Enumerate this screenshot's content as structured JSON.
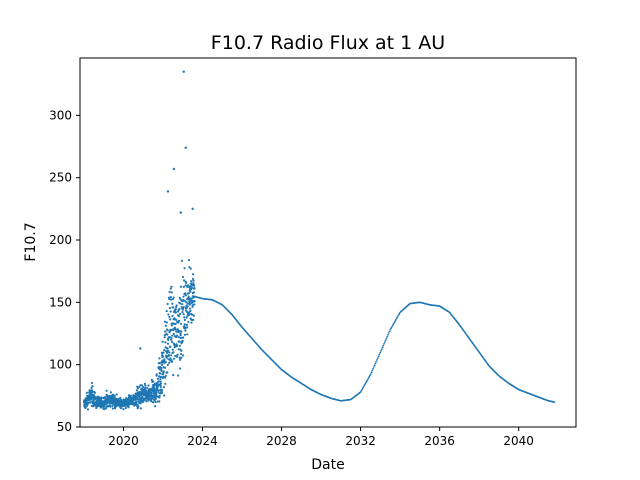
{
  "chart_data": {
    "type": "scatter",
    "title": "F10.7 Radio Flux at 1 AU",
    "xlabel": "Date",
    "ylabel": "F10.7",
    "x_axis": "date",
    "xlim": [
      2017.8,
      2042.9
    ],
    "ylim": [
      50,
      346
    ],
    "xticks": [
      2020,
      2024,
      2028,
      2032,
      2036,
      2040
    ],
    "xtick_labels": [
      "2020",
      "2024",
      "2028",
      "2032",
      "2036",
      "2040"
    ],
    "yticks": [
      50,
      100,
      150,
      200,
      250,
      300
    ],
    "ytick_labels": [
      "50",
      "100",
      "150",
      "200",
      "250",
      "300"
    ],
    "grid": false,
    "legend": "none",
    "series": [
      {
        "color": "#1f77b4",
        "observed": {
          "description_points": "noisy daily observations, anchor points (date, value)",
          "x": [
            2018.0,
            2018.2,
            2018.4,
            2018.6,
            2018.8,
            2019.0,
            2019.2,
            2019.4,
            2019.6,
            2019.8,
            2020.0,
            2020.2,
            2020.4,
            2020.6,
            2020.8,
            2021.0,
            2021.2,
            2021.4,
            2021.6,
            2021.8,
            2022.0,
            2022.2,
            2022.4,
            2022.6,
            2022.8,
            2023.0,
            2023.2,
            2023.4,
            2023.6
          ],
          "y": [
            68,
            72,
            76,
            70,
            69,
            70,
            71,
            72,
            70,
            69,
            69,
            70,
            71,
            72,
            74,
            76,
            75,
            76,
            78,
            85,
            100,
            115,
            130,
            125,
            130,
            140,
            148,
            155,
            160
          ],
          "spread": [
            4,
            5,
            7,
            4,
            4,
            4,
            5,
            5,
            4,
            3,
            3,
            4,
            4,
            5,
            8,
            7,
            5,
            6,
            9,
            15,
            20,
            25,
            28,
            25,
            28,
            25,
            20,
            18,
            16
          ]
        },
        "outliers": {
          "x": [
            2020.85,
            2022.25,
            2022.55,
            2022.9,
            2023.15,
            2023.05,
            2023.5,
            2021.95
          ],
          "y": [
            113,
            239,
            257,
            222,
            274,
            335,
            225,
            100
          ]
        },
        "forecast": {
          "x": [
            2023.5,
            2024.0,
            2024.5,
            2025.0,
            2025.5,
            2026.0,
            2026.5,
            2027.0,
            2027.5,
            2028.0,
            2028.5,
            2029.0,
            2029.5,
            2030.0,
            2030.5,
            2031.0,
            2031.5,
            2032.0,
            2032.5,
            2033.0,
            2033.5,
            2034.0,
            2034.5,
            2035.0,
            2035.5,
            2036.0,
            2036.5,
            2037.0,
            2037.5,
            2038.0,
            2038.5,
            2039.0,
            2039.5,
            2040.0,
            2040.5,
            2041.0,
            2041.5,
            2041.8
          ],
          "y": [
            155,
            153,
            152,
            148,
            140,
            130,
            121,
            112,
            104,
            96,
            90,
            85,
            80,
            76,
            73,
            71,
            72,
            78,
            92,
            110,
            128,
            142,
            149,
            150,
            148,
            147,
            142,
            132,
            121,
            110,
            99,
            91,
            85,
            80,
            77,
            74,
            71,
            70
          ]
        }
      }
    ]
  }
}
